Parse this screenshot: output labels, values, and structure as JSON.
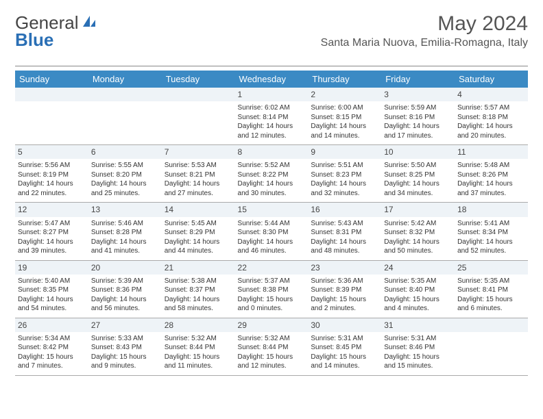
{
  "brand": {
    "part1": "General",
    "part2": "Blue"
  },
  "title": {
    "month": "May 2024",
    "location": "Santa Maria Nuova, Emilia-Romagna, Italy"
  },
  "colors": {
    "header_bg": "#3b8ac4",
    "daynum_bg": "#eef3f7",
    "rule": "#aaaaaa",
    "brand_blue": "#2a6fb5"
  },
  "weekdays": [
    "Sunday",
    "Monday",
    "Tuesday",
    "Wednesday",
    "Thursday",
    "Friday",
    "Saturday"
  ],
  "calendar": {
    "first_weekday_index": 3,
    "days": [
      {
        "n": 1,
        "sr": "6:02 AM",
        "ss": "8:14 PM",
        "dl": "14 hours and 12 minutes."
      },
      {
        "n": 2,
        "sr": "6:00 AM",
        "ss": "8:15 PM",
        "dl": "14 hours and 14 minutes."
      },
      {
        "n": 3,
        "sr": "5:59 AM",
        "ss": "8:16 PM",
        "dl": "14 hours and 17 minutes."
      },
      {
        "n": 4,
        "sr": "5:57 AM",
        "ss": "8:18 PM",
        "dl": "14 hours and 20 minutes."
      },
      {
        "n": 5,
        "sr": "5:56 AM",
        "ss": "8:19 PM",
        "dl": "14 hours and 22 minutes."
      },
      {
        "n": 6,
        "sr": "5:55 AM",
        "ss": "8:20 PM",
        "dl": "14 hours and 25 minutes."
      },
      {
        "n": 7,
        "sr": "5:53 AM",
        "ss": "8:21 PM",
        "dl": "14 hours and 27 minutes."
      },
      {
        "n": 8,
        "sr": "5:52 AM",
        "ss": "8:22 PM",
        "dl": "14 hours and 30 minutes."
      },
      {
        "n": 9,
        "sr": "5:51 AM",
        "ss": "8:23 PM",
        "dl": "14 hours and 32 minutes."
      },
      {
        "n": 10,
        "sr": "5:50 AM",
        "ss": "8:25 PM",
        "dl": "14 hours and 34 minutes."
      },
      {
        "n": 11,
        "sr": "5:48 AM",
        "ss": "8:26 PM",
        "dl": "14 hours and 37 minutes."
      },
      {
        "n": 12,
        "sr": "5:47 AM",
        "ss": "8:27 PM",
        "dl": "14 hours and 39 minutes."
      },
      {
        "n": 13,
        "sr": "5:46 AM",
        "ss": "8:28 PM",
        "dl": "14 hours and 41 minutes."
      },
      {
        "n": 14,
        "sr": "5:45 AM",
        "ss": "8:29 PM",
        "dl": "14 hours and 44 minutes."
      },
      {
        "n": 15,
        "sr": "5:44 AM",
        "ss": "8:30 PM",
        "dl": "14 hours and 46 minutes."
      },
      {
        "n": 16,
        "sr": "5:43 AM",
        "ss": "8:31 PM",
        "dl": "14 hours and 48 minutes."
      },
      {
        "n": 17,
        "sr": "5:42 AM",
        "ss": "8:32 PM",
        "dl": "14 hours and 50 minutes."
      },
      {
        "n": 18,
        "sr": "5:41 AM",
        "ss": "8:34 PM",
        "dl": "14 hours and 52 minutes."
      },
      {
        "n": 19,
        "sr": "5:40 AM",
        "ss": "8:35 PM",
        "dl": "14 hours and 54 minutes."
      },
      {
        "n": 20,
        "sr": "5:39 AM",
        "ss": "8:36 PM",
        "dl": "14 hours and 56 minutes."
      },
      {
        "n": 21,
        "sr": "5:38 AM",
        "ss": "8:37 PM",
        "dl": "14 hours and 58 minutes."
      },
      {
        "n": 22,
        "sr": "5:37 AM",
        "ss": "8:38 PM",
        "dl": "15 hours and 0 minutes."
      },
      {
        "n": 23,
        "sr": "5:36 AM",
        "ss": "8:39 PM",
        "dl": "15 hours and 2 minutes."
      },
      {
        "n": 24,
        "sr": "5:35 AM",
        "ss": "8:40 PM",
        "dl": "15 hours and 4 minutes."
      },
      {
        "n": 25,
        "sr": "5:35 AM",
        "ss": "8:41 PM",
        "dl": "15 hours and 6 minutes."
      },
      {
        "n": 26,
        "sr": "5:34 AM",
        "ss": "8:42 PM",
        "dl": "15 hours and 7 minutes."
      },
      {
        "n": 27,
        "sr": "5:33 AM",
        "ss": "8:43 PM",
        "dl": "15 hours and 9 minutes."
      },
      {
        "n": 28,
        "sr": "5:32 AM",
        "ss": "8:44 PM",
        "dl": "15 hours and 11 minutes."
      },
      {
        "n": 29,
        "sr": "5:32 AM",
        "ss": "8:44 PM",
        "dl": "15 hours and 12 minutes."
      },
      {
        "n": 30,
        "sr": "5:31 AM",
        "ss": "8:45 PM",
        "dl": "15 hours and 14 minutes."
      },
      {
        "n": 31,
        "sr": "5:31 AM",
        "ss": "8:46 PM",
        "dl": "15 hours and 15 minutes."
      }
    ]
  },
  "labels": {
    "sunrise": "Sunrise: ",
    "sunset": "Sunset: ",
    "daylight": "Daylight: "
  }
}
